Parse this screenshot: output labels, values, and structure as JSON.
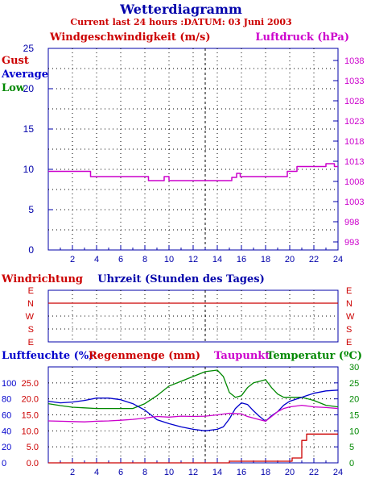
{
  "header": {
    "title": "Wetterdiagramm",
    "subtitle": "Current last 24 hours :DATUM: 03 Juni 2003"
  },
  "colors": {
    "wind_label": "#cc0000",
    "pressure": "#cc00cc",
    "gust": "#cc0000",
    "average": "#0000cc",
    "low": "#008800",
    "humidity": "#0000cc",
    "rain": "#cc0000",
    "dewpoint": "#cc00cc",
    "temperature": "#008800",
    "axis": "#0000aa",
    "grid": "#000000"
  },
  "chart_data": [
    {
      "type": "line",
      "title": "",
      "ylabel_left": "Windgeschwindigkeit (m/s)",
      "ylabel_right": "Luftdruck (hPa)",
      "legend": [
        "Gust",
        "Average",
        "Low"
      ],
      "legend_placement": "left",
      "ylim_left": [
        0,
        25
      ],
      "yticks_left": [
        "0",
        "5",
        "10",
        "15",
        "20",
        "25"
      ],
      "ylim_right": [
        991,
        1041
      ],
      "yticks_right": [
        "993",
        "998",
        "1003",
        "1008",
        "1013",
        "1018",
        "1023",
        "1028",
        "1033",
        "1038"
      ],
      "xlim": [
        0,
        24
      ],
      "xticks": [
        "2",
        "4",
        "6",
        "8",
        "10",
        "12",
        "14",
        "16",
        "18",
        "20",
        "22",
        "24"
      ],
      "grid": true,
      "current_time_marker": 13,
      "series": [
        {
          "name": "Luftdruck (hPa)",
          "axis": "right",
          "x": [
            0,
            3.5,
            3.5,
            8.3,
            8.3,
            9.6,
            9.6,
            10.0,
            10.0,
            15.2,
            15.2,
            15.6,
            15.6,
            15.9,
            15.9,
            19.8,
            19.8,
            20.6,
            20.6,
            23.0,
            23.0,
            23.7,
            23.7,
            24
          ],
          "y": [
            1010.5,
            1010.5,
            1009.2,
            1009.2,
            1008.2,
            1008.2,
            1009.2,
            1009.2,
            1008.2,
            1008.2,
            1009.0,
            1009.0,
            1010.0,
            1010.0,
            1009.2,
            1009.2,
            1010.5,
            1010.5,
            1011.7,
            1011.7,
            1012.4,
            1012.4,
            1011.7,
            1011.7
          ]
        }
      ]
    },
    {
      "type": "line",
      "title": "Windrichtung",
      "xlabel": "Uhrzeit (Stunden des Tages)",
      "yticks": [
        "E",
        "N",
        "W",
        "S",
        "E"
      ],
      "xlim": [
        0,
        24
      ],
      "grid": true,
      "current_time_marker": 13,
      "series": [
        {
          "name": "Windrichtung",
          "x": [
            0,
            24
          ],
          "y": [
            "N",
            "N"
          ]
        }
      ]
    },
    {
      "type": "line",
      "title": "",
      "ylabel_left": "Luftfeuchte (%)",
      "ylabel_left2": "Regenmenge (mm)",
      "ylabel_right_a": "Taupunkt",
      "ylabel_right_b": "Temperatur (ºC)",
      "ylim_humidity": [
        0,
        120
      ],
      "yticks_humidity": [
        "0",
        "20",
        "40",
        "60",
        "80",
        "100"
      ],
      "ylim_rain": [
        0,
        30
      ],
      "yticks_rain": [
        "0.0",
        "5.0",
        "10.0",
        "15.0",
        "20.0",
        "25.0"
      ],
      "ylim_temp": [
        0,
        30
      ],
      "yticks_temp": [
        "0",
        "5",
        "10",
        "15",
        "20",
        "25",
        "30"
      ],
      "xlim": [
        0,
        24
      ],
      "xticks": [
        "2",
        "4",
        "6",
        "8",
        "10",
        "12",
        "14",
        "16",
        "18",
        "20",
        "22",
        "24"
      ],
      "grid": true,
      "current_time_marker": 13,
      "series": [
        {
          "name": "Temperatur (ºC)",
          "axis": "temp",
          "x": [
            0,
            1,
            2,
            3,
            4,
            5,
            6,
            7,
            8,
            9,
            10,
            11,
            12,
            13,
            14,
            14.5,
            15,
            15.5,
            16,
            16.5,
            17,
            17.5,
            18,
            18.5,
            19,
            19.5,
            20,
            21,
            22,
            23,
            24
          ],
          "y": [
            18.5,
            17.9,
            17.4,
            17.2,
            17.0,
            17.0,
            17.0,
            17.0,
            18.5,
            21.0,
            24.0,
            25.5,
            27.0,
            28.5,
            29.0,
            27.0,
            22.0,
            20.5,
            21.0,
            23.5,
            25.0,
            25.5,
            26.0,
            23.5,
            21.5,
            20.5,
            20.5,
            20.5,
            19.5,
            18.0,
            17.5
          ]
        },
        {
          "name": "Luftfeuchte (%)",
          "axis": "humidity",
          "x": [
            0,
            1,
            2,
            3,
            4,
            5,
            6,
            7,
            8,
            8.5,
            9,
            10,
            11,
            12,
            13,
            14,
            14.5,
            15,
            15.5,
            16,
            16.5,
            17,
            17.5,
            18,
            18.5,
            19,
            19.5,
            20,
            21,
            22,
            23,
            24
          ],
          "y": [
            77,
            75,
            76,
            78,
            81,
            81,
            79,
            74,
            66,
            60,
            54,
            49,
            45,
            42,
            40,
            42,
            45,
            55,
            68,
            75,
            73,
            65,
            58,
            52,
            59,
            64,
            72,
            77,
            82,
            87,
            90,
            91
          ]
        },
        {
          "name": "Taupunkt",
          "axis": "temp",
          "x": [
            0,
            1,
            2,
            3,
            4,
            5,
            6,
            7,
            8,
            9,
            10,
            11,
            12,
            13,
            14,
            15,
            16,
            16.5,
            17,
            17.5,
            18,
            18.5,
            19,
            19.5,
            20,
            21,
            22,
            23,
            24
          ],
          "y": [
            13.1,
            13.0,
            12.9,
            12.8,
            13.0,
            13.1,
            13.3,
            13.6,
            14.0,
            14.5,
            14.3,
            14.6,
            14.5,
            14.6,
            15.0,
            15.5,
            15.3,
            14.5,
            14.0,
            13.5,
            13.0,
            14.5,
            16.0,
            17.0,
            17.5,
            18.0,
            17.5,
            17.3,
            17.0
          ]
        },
        {
          "name": "Regenmenge (mm)",
          "axis": "rain",
          "x": [
            0,
            15.0,
            15.0,
            20.2,
            20.2,
            21.0,
            21.0,
            21.4,
            21.4,
            24
          ],
          "y": [
            0,
            0,
            0.5,
            0.5,
            1.5,
            1.5,
            7.0,
            7.0,
            9.0,
            9.0
          ]
        }
      ]
    }
  ]
}
